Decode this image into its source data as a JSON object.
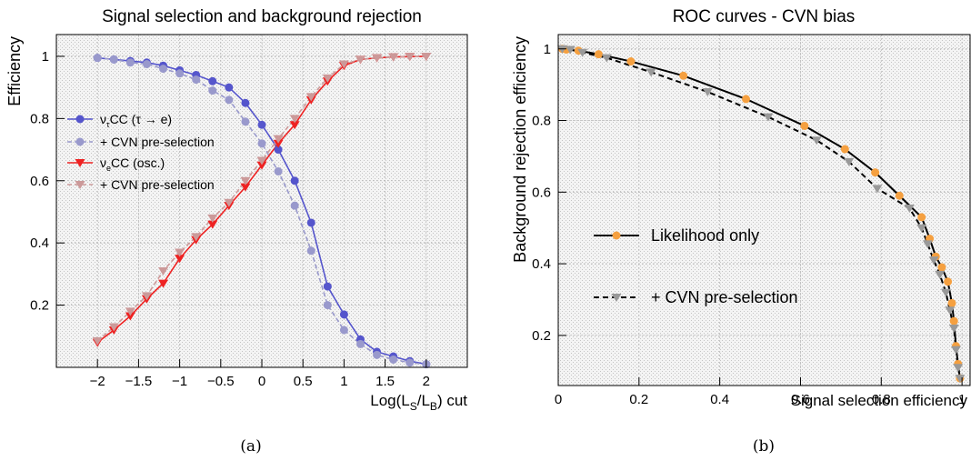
{
  "figure": {
    "captions": [
      "(a)",
      "(b)"
    ]
  },
  "chart_data": [
    {
      "type": "line",
      "title": "Signal selection and background rejection",
      "xlabel": "Log(L_S/L_B) cut",
      "ylabel": "Efficiency",
      "xlim": [
        -2.5,
        2.5
      ],
      "ylim": [
        0.0,
        1.07
      ],
      "xticks": [
        -2,
        -1.5,
        -1,
        -0.5,
        0,
        0.5,
        1,
        1.5,
        2
      ],
      "xtick_labels": [
        "−2",
        "−1.5",
        "−1",
        "−0.5",
        "0",
        "0.5",
        "1",
        "1.5",
        "2"
      ],
      "yticks": [
        0.2,
        0.4,
        0.6,
        0.8,
        1
      ],
      "ytick_labels": [
        "0.2",
        "0.4",
        "0.6",
        "0.8",
        "1"
      ],
      "grid": true,
      "legend_position": "middle-left",
      "x": [
        -2.0,
        -1.8,
        -1.6,
        -1.4,
        -1.2,
        -1.0,
        -0.8,
        -0.6,
        -0.4,
        -0.2,
        0.0,
        0.2,
        0.4,
        0.6,
        0.8,
        1.0,
        1.2,
        1.4,
        1.6,
        1.8,
        2.0
      ],
      "series": [
        {
          "name": "ν_τCC (τ → e)",
          "color": "#5555cc",
          "marker": "circle",
          "style": "solid",
          "values": [
            0.995,
            0.99,
            0.985,
            0.98,
            0.97,
            0.955,
            0.94,
            0.92,
            0.9,
            0.85,
            0.78,
            0.7,
            0.6,
            0.465,
            0.26,
            0.17,
            0.09,
            0.05,
            0.035,
            0.02,
            0.01
          ]
        },
        {
          "name": "+ CVN pre-selection",
          "color": "#9999cc",
          "marker": "circle",
          "style": "dashed",
          "values": [
            0.995,
            0.99,
            0.98,
            0.975,
            0.96,
            0.945,
            0.925,
            0.89,
            0.86,
            0.79,
            0.72,
            0.63,
            0.52,
            0.375,
            0.2,
            0.12,
            0.075,
            0.04,
            0.025,
            0.015,
            0.01
          ]
        },
        {
          "name": "ν_eCC (osc.)",
          "color": "#ee2222",
          "marker": "triangle-down",
          "style": "solid",
          "values": [
            0.08,
            0.12,
            0.165,
            0.22,
            0.27,
            0.35,
            0.41,
            0.46,
            0.52,
            0.58,
            0.65,
            0.72,
            0.78,
            0.86,
            0.92,
            0.97,
            0.99,
            0.995,
            0.998,
            0.999,
            1.0
          ]
        },
        {
          "name": "+ CVN pre-selection",
          "color": "#cc9999",
          "marker": "triangle-down",
          "style": "dashed",
          "values": [
            0.085,
            0.13,
            0.18,
            0.23,
            0.31,
            0.37,
            0.42,
            0.48,
            0.53,
            0.6,
            0.665,
            0.735,
            0.8,
            0.87,
            0.93,
            0.975,
            0.99,
            0.995,
            0.998,
            0.999,
            1.0
          ]
        }
      ]
    },
    {
      "type": "line",
      "title": "ROC curves - CVN bias",
      "xlabel": "Signal selection efficiency",
      "ylabel": "Background rejection efficiency",
      "xlim": [
        0.0,
        1.02
      ],
      "ylim": [
        0.06,
        1.04
      ],
      "xticks": [
        0,
        0.2,
        0.4,
        0.6,
        0.8,
        1
      ],
      "xtick_labels": [
        "0",
        "0.2",
        "0.4",
        "0.6",
        "0.8",
        "1"
      ],
      "yticks": [
        0.2,
        0.4,
        0.6,
        0.8,
        1
      ],
      "ytick_labels": [
        "0.2",
        "0.4",
        "0.6",
        "0.8",
        "1"
      ],
      "grid": true,
      "legend_position": "middle-left",
      "series": [
        {
          "name": "Likelihood only",
          "color": "#000000",
          "marker_color": "#f5a040",
          "marker": "circle",
          "style": "solid",
          "points": [
            [
              0.01,
              1.0
            ],
            [
              0.02,
              0.998
            ],
            [
              0.05,
              0.995
            ],
            [
              0.1,
              0.985
            ],
            [
              0.18,
              0.965
            ],
            [
              0.31,
              0.925
            ],
            [
              0.465,
              0.86
            ],
            [
              0.61,
              0.785
            ],
            [
              0.71,
              0.72
            ],
            [
              0.785,
              0.655
            ],
            [
              0.845,
              0.59
            ],
            [
              0.9,
              0.53
            ],
            [
              0.92,
              0.47
            ],
            [
              0.935,
              0.42
            ],
            [
              0.95,
              0.39
            ],
            [
              0.965,
              0.35
            ],
            [
              0.975,
              0.29
            ],
            [
              0.98,
              0.24
            ],
            [
              0.985,
              0.17
            ],
            [
              0.99,
              0.12
            ],
            [
              0.995,
              0.08
            ]
          ]
        },
        {
          "name": "+ CVN pre-selection",
          "color": "#000000",
          "marker_color": "#999999",
          "marker": "triangle-down",
          "style": "dashed",
          "points": [
            [
              0.01,
              1.0
            ],
            [
              0.03,
              0.998
            ],
            [
              0.06,
              0.99
            ],
            [
              0.12,
              0.975
            ],
            [
              0.23,
              0.935
            ],
            [
              0.37,
              0.88
            ],
            [
              0.52,
              0.81
            ],
            [
              0.64,
              0.745
            ],
            [
              0.72,
              0.685
            ],
            [
              0.79,
              0.61
            ],
            [
              0.87,
              0.555
            ],
            [
              0.9,
              0.5
            ],
            [
              0.915,
              0.455
            ],
            [
              0.93,
              0.41
            ],
            [
              0.945,
              0.37
            ],
            [
              0.96,
              0.32
            ],
            [
              0.97,
              0.27
            ],
            [
              0.98,
              0.22
            ],
            [
              0.985,
              0.16
            ],
            [
              0.99,
              0.11
            ],
            [
              0.995,
              0.08
            ]
          ]
        }
      ]
    }
  ]
}
